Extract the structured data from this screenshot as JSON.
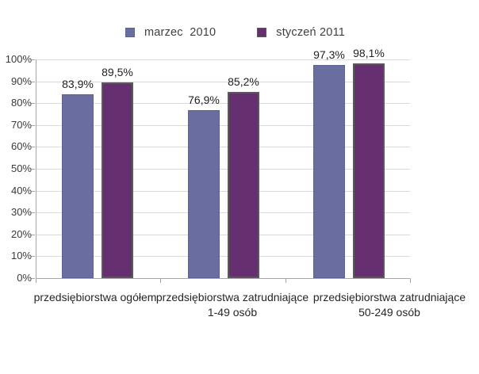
{
  "chart_data": {
    "type": "bar",
    "title": "",
    "xlabel": "",
    "ylabel": "",
    "categories": [
      "przedsiębiorstwa ogółem",
      "przedsiębiorstwa zatrudniające 1-49 osób",
      "przedsiębiorstwa zatrudniające 50-249 osób"
    ],
    "categories_lines": [
      [
        "przedsiębiorstwa ogółem"
      ],
      [
        "przedsiębiorstwa zatrudniające",
        "1-49 osób"
      ],
      [
        "przedsiębiorstwa zatrudniające",
        "50-249 osób"
      ]
    ],
    "series": [
      {
        "name": "marzec  2010",
        "color": "#6a6da0",
        "border_color": "#5e6292",
        "values": [
          83.9,
          76.9,
          97.3
        ],
        "data_labels": [
          "83,9%",
          "76,9%",
          "97,3%"
        ]
      },
      {
        "name": "styczeń 2011",
        "color": "#663070",
        "border_color": "#595959",
        "values": [
          89.5,
          85.2,
          98.1
        ],
        "data_labels": [
          "89,5%",
          "85,2%",
          "98,1%"
        ]
      }
    ],
    "ylim": [
      0,
      100
    ],
    "ytick_labels": [
      "0%",
      "10%",
      "20%",
      "30%",
      "40%",
      "50%",
      "60%",
      "70%",
      "80%",
      "90%",
      "100%"
    ],
    "grid": true,
    "legend_position": "top",
    "gridline_color": "#d9d9d9",
    "axis_color": "#a6a6a6",
    "background_color": "#ffffff"
  }
}
